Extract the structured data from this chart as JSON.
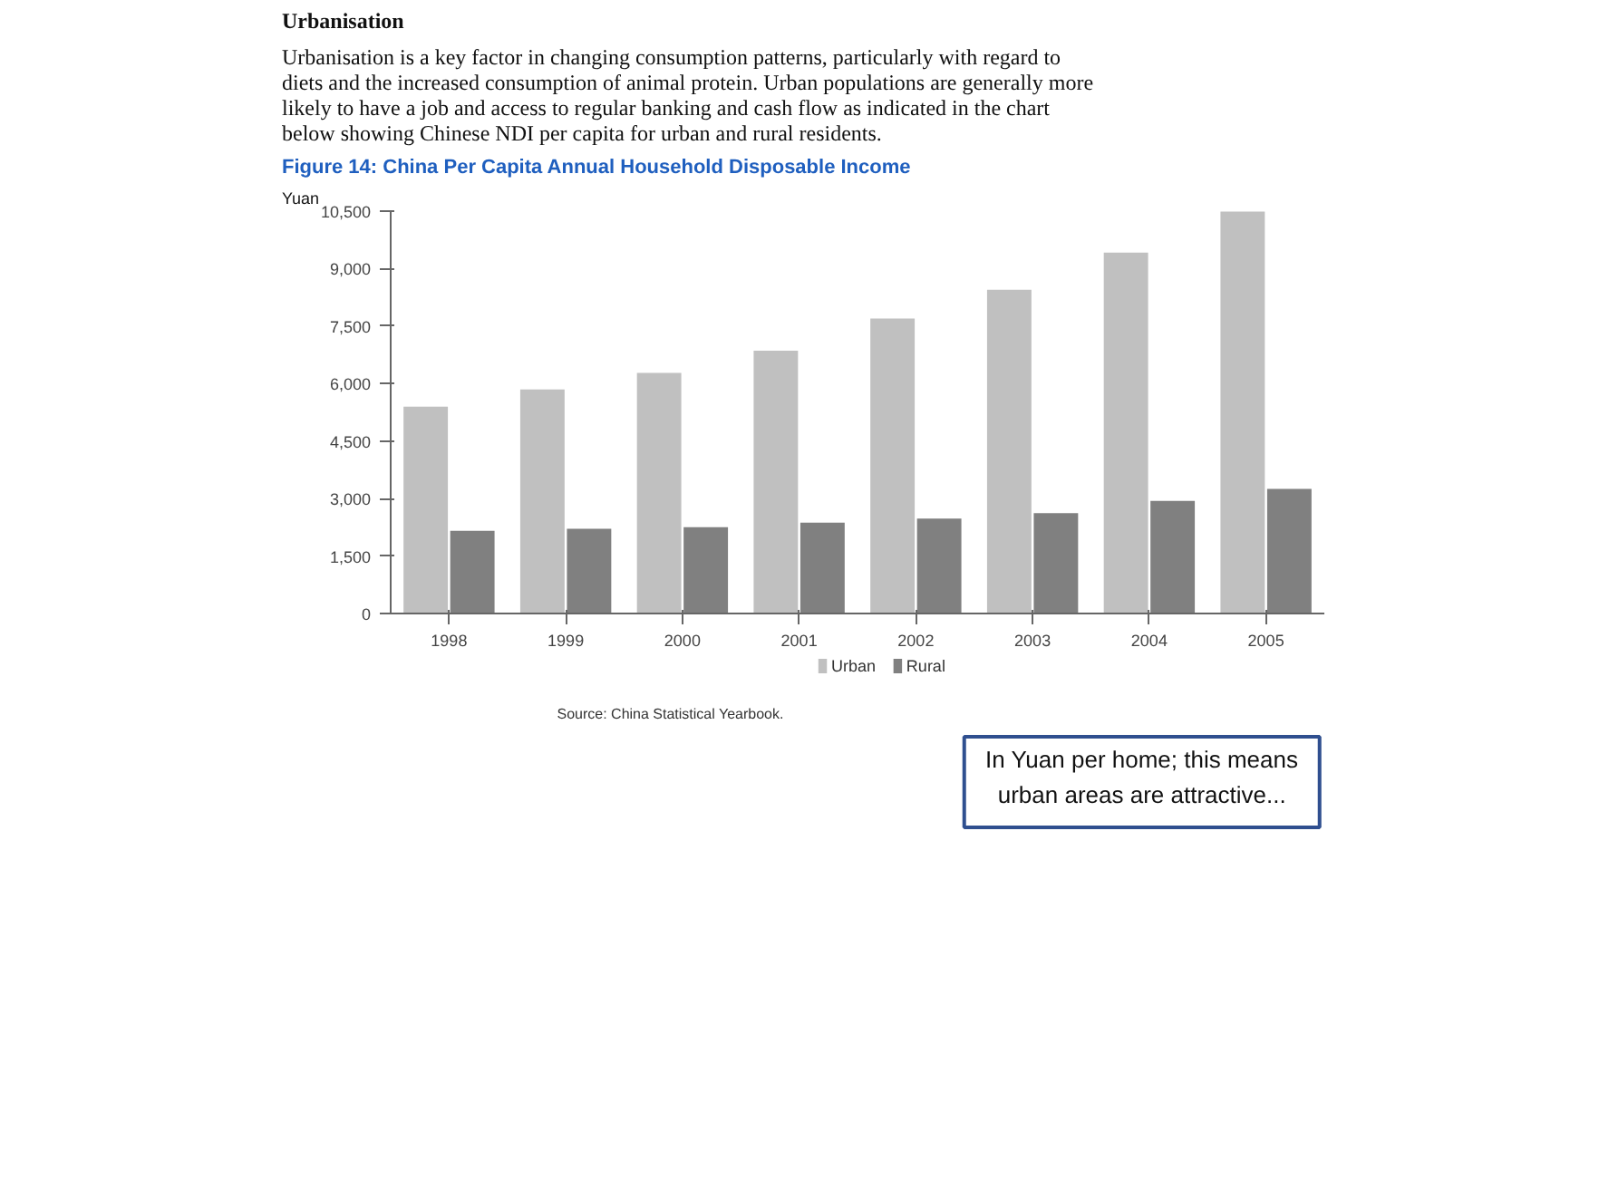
{
  "chart_data": {
    "type": "bar",
    "title": "Figure 14: China Per Capita Annual Household Disposable Income",
    "ylabel": "Yuan",
    "annotations": [
      "Urbanisation",
      "Urbanisation is a key factor in changing consumption patterns, particularly with regard to diets and the increased consumption of animal protein. Urban populations are generally more likely to have a job and access to regular banking and cash flow as indicated in the chart below showing Chinese NDI per capita for urban and rural residents.",
      "Source: China Statistical Yearbook.",
      "In Yuan per home; this means urban areas are attractive..."
    ],
    "categories": [
      "1998",
      "1999",
      "2000",
      "2001",
      "2002",
      "2003",
      "2004",
      "2005"
    ],
    "series": [
      {
        "name": "Urban",
        "color": "#c0c0c0",
        "values": [
          5400,
          5850,
          6280,
          6860,
          7700,
          8450,
          9420,
          10490
        ]
      },
      {
        "name": "Rural",
        "color": "#808080",
        "values": [
          2160,
          2210,
          2250,
          2370,
          2480,
          2620,
          2940,
          3250
        ]
      }
    ],
    "ylim": [
      0,
      10500
    ],
    "yticks": [
      0,
      {
        "value": 1500,
        "label": "1,500"
      },
      {
        "value": 3000,
        "label": "3,000"
      },
      {
        "value": 4500,
        "label": "4,500"
      },
      {
        "value": 6000,
        "label": "6,000"
      },
      {
        "value": 7500,
        "label": "7,500"
      },
      {
        "value": 9000,
        "label": "9,000"
      },
      {
        "value": 10500,
        "label": "10,500"
      }
    ],
    "grid": false,
    "legend": "bottom"
  }
}
